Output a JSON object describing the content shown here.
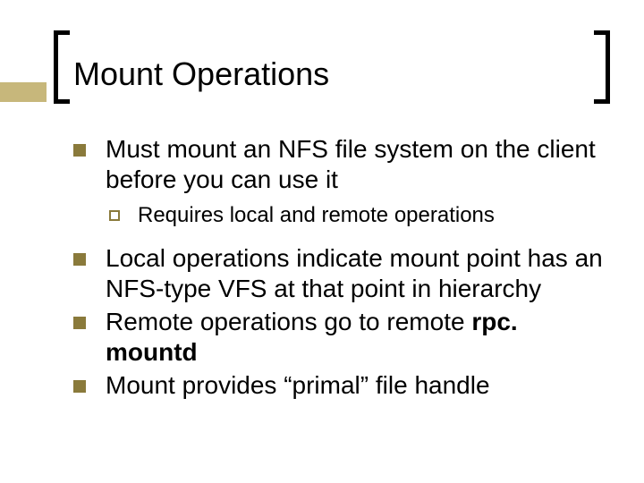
{
  "colors": {
    "accent_bar": "#c7b77b",
    "bullet_fill": "#8a7a3b",
    "bullet_border": "#8a7a3b",
    "bracket": "#000000",
    "text": "#000000",
    "background": "#ffffff"
  },
  "typography": {
    "title_fontsize": 36,
    "l1_fontsize": 28,
    "l2_fontsize": 24,
    "font_family": "Arial"
  },
  "title": "Mount Operations",
  "items": [
    {
      "text": "Must mount an NFS file system on the client before you can use it",
      "sub": [
        {
          "text": "Requires local and remote operations"
        }
      ]
    },
    {
      "text": "Local operations indicate mount point has an NFS-type VFS at that point in hierarchy"
    },
    {
      "text_prefix": "Remote operations go to remote ",
      "text_bold": "rpc. mountd"
    },
    {
      "text": "Mount provides “primal” file handle"
    }
  ]
}
